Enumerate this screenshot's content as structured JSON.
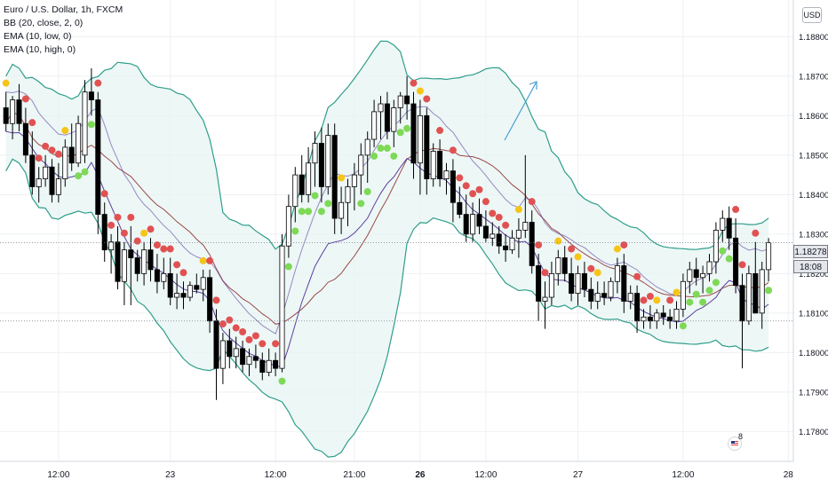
{
  "legend": {
    "title": "Euro / U.S. Dollar, 1h, FXCM",
    "indicators": [
      "BB (20, close, 2, 0)",
      "EMA (10, low, 0)",
      "EMA (10, high, 0)"
    ]
  },
  "currency_label": "USD",
  "current_price_label": "1.18278",
  "countdown_label": "18:08",
  "event_count": "8",
  "colors": {
    "bull_body": "#ffffff",
    "bear_body": "#000000",
    "candle_border": "#000000",
    "bb_band": "#2e9e8a",
    "bb_fill": "#e6f4f2",
    "ema_low": "#5b3f9e",
    "ema_high": "#8b2a2a",
    "dot_red": "#e05252",
    "dot_yellow": "#f5c518",
    "dot_green": "#7ed957",
    "arrow": "#4a9fd5",
    "grid": "#eef0f3",
    "axis_text": "#131722"
  },
  "chart_data": {
    "type": "candlestick",
    "title": "Euro / U.S. Dollar, 1h, FXCM",
    "ylim": [
      1.1775,
      1.189
    ],
    "y_ticks": [
      "1.17800",
      "1.17900",
      "1.18000",
      "1.18100",
      "1.18200",
      "1.18300",
      "1.18400",
      "1.18500",
      "1.18600",
      "1.18700",
      "1.18800"
    ],
    "x_tick_labels": [
      {
        "label": "12:00",
        "bar": 8
      },
      {
        "label": "23",
        "bar": 25
      },
      {
        "label": "12:00",
        "bar": 41
      },
      {
        "label": "21:00",
        "bar": 53
      },
      {
        "label": "26",
        "bar": 63
      },
      {
        "label": "12:00",
        "bar": 73
      },
      {
        "label": "27",
        "bar": 87
      },
      {
        "label": "12:00",
        "bar": 103
      },
      {
        "label": "28",
        "bar": 119
      }
    ],
    "candles": [
      [
        1.1862,
        1.1866,
        1.1856,
        1.1858
      ],
      [
        1.1858,
        1.1865,
        1.1854,
        1.1864
      ],
      [
        1.1864,
        1.1868,
        1.1856,
        1.1858
      ],
      [
        1.1858,
        1.1862,
        1.1848,
        1.185
      ],
      [
        1.185,
        1.1856,
        1.184,
        1.1842
      ],
      [
        1.1842,
        1.1847,
        1.1838,
        1.1844
      ],
      [
        1.1844,
        1.185,
        1.1842,
        1.1847
      ],
      [
        1.1847,
        1.1849,
        1.1838,
        1.184
      ],
      [
        1.184,
        1.1848,
        1.1838,
        1.1844
      ],
      [
        1.1844,
        1.1854,
        1.1842,
        1.1852
      ],
      [
        1.1852,
        1.1858,
        1.1846,
        1.1848
      ],
      [
        1.1848,
        1.186,
        1.1847,
        1.1858
      ],
      [
        1.185,
        1.1869,
        1.1848,
        1.1866
      ],
      [
        1.1866,
        1.1872,
        1.186,
        1.1864
      ],
      [
        1.1864,
        1.1866,
        1.183,
        1.1835
      ],
      [
        1.1835,
        1.1838,
        1.1823,
        1.1826
      ],
      [
        1.1826,
        1.183,
        1.182,
        1.1828
      ],
      [
        1.1828,
        1.1832,
        1.1816,
        1.1818
      ],
      [
        1.1818,
        1.1828,
        1.1812,
        1.1826
      ],
      [
        1.1826,
        1.1832,
        1.1812,
        1.1824
      ],
      [
        1.1824,
        1.1826,
        1.1818,
        1.182
      ],
      [
        1.182,
        1.1828,
        1.1817,
        1.1826
      ],
      [
        1.1826,
        1.1829,
        1.1818,
        1.1821
      ],
      [
        1.1821,
        1.1825,
        1.1815,
        1.1818
      ],
      [
        1.1818,
        1.1824,
        1.1816,
        1.182
      ],
      [
        1.182,
        1.1824,
        1.1812,
        1.1814
      ],
      [
        1.1814,
        1.182,
        1.1811,
        1.1815
      ],
      [
        1.1815,
        1.1818,
        1.1811,
        1.1814
      ],
      [
        1.1814,
        1.1818,
        1.1813,
        1.1817
      ],
      [
        1.1817,
        1.182,
        1.1815,
        1.1816
      ],
      [
        1.1816,
        1.1821,
        1.1813,
        1.1819
      ],
      [
        1.1819,
        1.1821,
        1.1805,
        1.1808
      ],
      [
        1.1808,
        1.1811,
        1.1788,
        1.1796
      ],
      [
        1.1796,
        1.1805,
        1.1792,
        1.1803
      ],
      [
        1.1803,
        1.1806,
        1.1796,
        1.1799
      ],
      [
        1.1799,
        1.1804,
        1.1796,
        1.1801
      ],
      [
        1.1801,
        1.1803,
        1.1795,
        1.1797
      ],
      [
        1.1797,
        1.1801,
        1.1794,
        1.1799
      ],
      [
        1.1799,
        1.1802,
        1.1796,
        1.1798
      ],
      [
        1.1798,
        1.18,
        1.1793,
        1.1795
      ],
      [
        1.1795,
        1.1801,
        1.1794,
        1.1798
      ],
      [
        1.1798,
        1.18,
        1.1794,
        1.1796
      ],
      [
        1.1796,
        1.183,
        1.1795,
        1.1827
      ],
      [
        1.1827,
        1.184,
        1.1824,
        1.1837
      ],
      [
        1.1837,
        1.1847,
        1.1833,
        1.1845
      ],
      [
        1.1845,
        1.185,
        1.1838,
        1.184
      ],
      [
        1.184,
        1.1852,
        1.1838,
        1.1848
      ],
      [
        1.1848,
        1.1856,
        1.1842,
        1.1853
      ],
      [
        1.1853,
        1.1857,
        1.1838,
        1.1842
      ],
      [
        1.1842,
        1.1858,
        1.184,
        1.1855
      ],
      [
        1.1855,
        1.1858,
        1.183,
        1.1834
      ],
      [
        1.1834,
        1.1842,
        1.183,
        1.1838
      ],
      [
        1.1838,
        1.1844,
        1.1832,
        1.1842
      ],
      [
        1.1842,
        1.1848,
        1.1836,
        1.1845
      ],
      [
        1.1845,
        1.1853,
        1.184,
        1.185
      ],
      [
        1.185,
        1.1856,
        1.1843,
        1.1854
      ],
      [
        1.1854,
        1.1864,
        1.1852,
        1.1861
      ],
      [
        1.1861,
        1.1865,
        1.1854,
        1.1863
      ],
      [
        1.1863,
        1.1866,
        1.1854,
        1.1856
      ],
      [
        1.1856,
        1.1864,
        1.1852,
        1.1862
      ],
      [
        1.1862,
        1.1866,
        1.1858,
        1.1865
      ],
      [
        1.1865,
        1.187,
        1.1859,
        1.1863
      ],
      [
        1.1863,
        1.1866,
        1.1844,
        1.1848
      ],
      [
        1.1848,
        1.1864,
        1.184,
        1.186
      ],
      [
        1.186,
        1.1862,
        1.184,
        1.1844
      ],
      [
        1.1844,
        1.1853,
        1.1842,
        1.1851
      ],
      [
        1.1851,
        1.1854,
        1.1842,
        1.1844
      ],
      [
        1.1844,
        1.1848,
        1.184,
        1.1846
      ],
      [
        1.1846,
        1.1849,
        1.1833,
        1.1838
      ],
      [
        1.1838,
        1.1842,
        1.1834,
        1.1835
      ],
      [
        1.1835,
        1.184,
        1.1828,
        1.183
      ],
      [
        1.183,
        1.1838,
        1.1828,
        1.1835
      ],
      [
        1.1835,
        1.1839,
        1.183,
        1.1832
      ],
      [
        1.1832,
        1.1836,
        1.1828,
        1.1829
      ],
      [
        1.1829,
        1.1833,
        1.1827,
        1.183
      ],
      [
        1.183,
        1.1832,
        1.1825,
        1.1827
      ],
      [
        1.1827,
        1.183,
        1.1823,
        1.1826
      ],
      [
        1.1826,
        1.1831,
        1.1825,
        1.1829
      ],
      [
        1.1829,
        1.1834,
        1.1824,
        1.1831
      ],
      [
        1.1831,
        1.185,
        1.1829,
        1.1833
      ],
      [
        1.1833,
        1.1836,
        1.182,
        1.1822
      ],
      [
        1.1822,
        1.1825,
        1.1808,
        1.1813
      ],
      [
        1.1813,
        1.1818,
        1.1806,
        1.1814
      ],
      [
        1.1814,
        1.1823,
        1.1812,
        1.182
      ],
      [
        1.182,
        1.1826,
        1.1817,
        1.1824
      ],
      [
        1.1824,
        1.1827,
        1.1818,
        1.182
      ],
      [
        1.182,
        1.1824,
        1.1813,
        1.1815
      ],
      [
        1.1815,
        1.1822,
        1.1812,
        1.182
      ],
      [
        1.182,
        1.1823,
        1.1814,
        1.1816
      ],
      [
        1.1816,
        1.1819,
        1.1811,
        1.1813
      ],
      [
        1.1813,
        1.1818,
        1.1811,
        1.1815
      ],
      [
        1.1815,
        1.1818,
        1.1812,
        1.1814
      ],
      [
        1.1814,
        1.1819,
        1.1813,
        1.1818
      ],
      [
        1.1818,
        1.1824,
        1.1815,
        1.1822
      ],
      [
        1.1822,
        1.1825,
        1.181,
        1.1813
      ],
      [
        1.1813,
        1.1817,
        1.1811,
        1.1815
      ],
      [
        1.1815,
        1.1817,
        1.1805,
        1.1808
      ],
      [
        1.1808,
        1.1811,
        1.1806,
        1.1809
      ],
      [
        1.1809,
        1.1812,
        1.1806,
        1.1808
      ],
      [
        1.1808,
        1.1811,
        1.1806,
        1.181
      ],
      [
        1.181,
        1.1812,
        1.1807,
        1.1809
      ],
      [
        1.1809,
        1.1811,
        1.1806,
        1.1808
      ],
      [
        1.1808,
        1.1813,
        1.1806,
        1.1811
      ],
      [
        1.1811,
        1.182,
        1.1809,
        1.1818
      ],
      [
        1.1818,
        1.1823,
        1.1815,
        1.1821
      ],
      [
        1.1821,
        1.1824,
        1.1817,
        1.1819
      ],
      [
        1.1819,
        1.1822,
        1.1815,
        1.182
      ],
      [
        1.182,
        1.1825,
        1.1818,
        1.1823
      ],
      [
        1.1823,
        1.1833,
        1.182,
        1.1831
      ],
      [
        1.1831,
        1.1836,
        1.1828,
        1.1834
      ],
      [
        1.1834,
        1.1837,
        1.1826,
        1.1829
      ],
      [
        1.1829,
        1.1834,
        1.1815,
        1.1817
      ],
      [
        1.1817,
        1.182,
        1.1796,
        1.1808
      ],
      [
        1.1808,
        1.1822,
        1.1807,
        1.182
      ],
      [
        1.182,
        1.1828,
        1.181,
        1.181
      ],
      [
        1.181,
        1.1823,
        1.1806,
        1.1821
      ],
      [
        1.1821,
        1.1829,
        1.1818,
        1.18278
      ]
    ]
  }
}
